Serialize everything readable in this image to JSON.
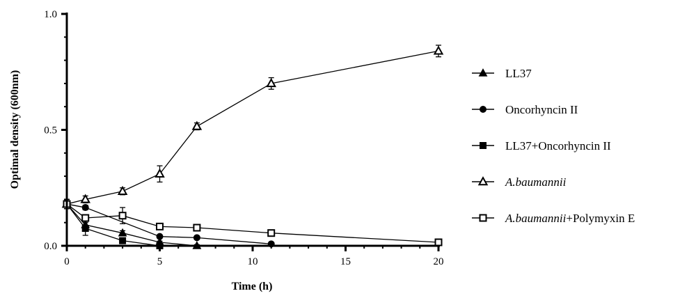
{
  "chart_data": {
    "type": "line",
    "xlabel": "Time (h)",
    "ylabel": "Optimal density (600nm)",
    "xlim": [
      0,
      20
    ],
    "ylim": [
      0,
      1.0
    ],
    "xticks": [
      0,
      5,
      10,
      15,
      20
    ],
    "xtick_labels": [
      "0",
      "5",
      "10",
      "15",
      "20"
    ],
    "yticks": [
      0,
      0.5,
      1.0
    ],
    "ytick_labels": [
      "0.0",
      "0.5",
      "1.0"
    ],
    "grid": false,
    "legend_position": "right",
    "series": [
      {
        "name": "LL37",
        "marker": "filled-triangle",
        "x": [
          0,
          1,
          3,
          5,
          7
        ],
        "y": [
          0.18,
          0.09,
          0.055,
          0.015,
          0.0
        ],
        "err": [
          0.02,
          0.01,
          0.01,
          0.005,
          0.005
        ]
      },
      {
        "name": "Oncorhyncin II",
        "marker": "filled-circle",
        "x": [
          0,
          1,
          5,
          7,
          11
        ],
        "y": [
          0.18,
          0.165,
          0.04,
          0.035,
          0.008
        ],
        "err": [
          0.02,
          0.01,
          0.005,
          0.005,
          0.005
        ]
      },
      {
        "name": "LL37+Oncorhyncin II",
        "marker": "filled-square",
        "x": [
          0,
          1,
          3,
          5
        ],
        "y": [
          0.18,
          0.075,
          0.022,
          0.0
        ],
        "err": [
          0.02,
          0.03,
          0.01,
          0.005
        ]
      },
      {
        "name": "A.baumannii",
        "name_parts": [
          {
            "text": "A.baumannii",
            "italic": true
          }
        ],
        "marker": "open-triangle",
        "x": [
          0,
          1,
          3,
          5,
          7,
          11,
          20
        ],
        "y": [
          0.18,
          0.2,
          0.235,
          0.31,
          0.515,
          0.7,
          0.84
        ],
        "err": [
          0.02,
          0.015,
          0.015,
          0.035,
          0.015,
          0.025,
          0.025
        ]
      },
      {
        "name": "A.baumannii+Polymyxin E",
        "name_parts": [
          {
            "text": "A.baumannii",
            "italic": true
          },
          {
            "text": "+Polymyxin E",
            "italic": false
          }
        ],
        "marker": "open-square",
        "x": [
          0,
          1,
          3,
          5,
          7,
          11,
          20
        ],
        "y": [
          0.18,
          0.12,
          0.13,
          0.083,
          0.078,
          0.055,
          0.015
        ],
        "err": [
          0.02,
          0.01,
          0.035,
          0.005,
          0.005,
          0.005,
          0.005
        ]
      }
    ]
  }
}
